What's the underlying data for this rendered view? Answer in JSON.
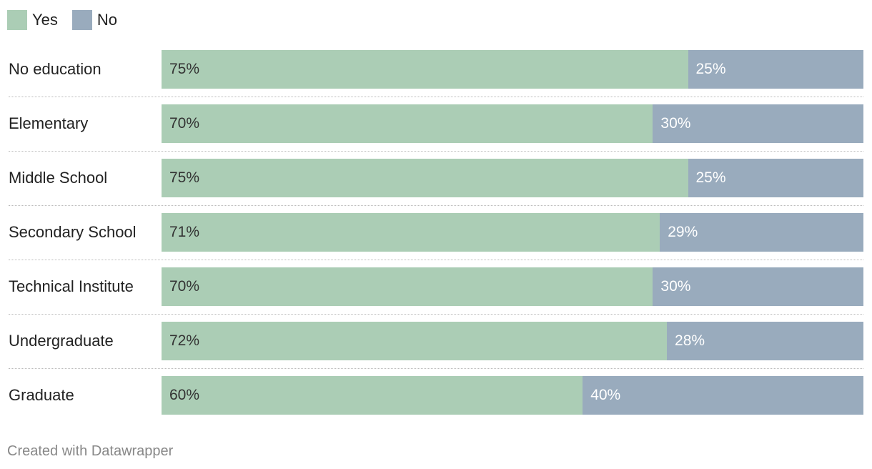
{
  "legend": {
    "items": [
      {
        "label": "Yes",
        "color": "#abcdb5"
      },
      {
        "label": "No",
        "color": "#99abbd"
      }
    ]
  },
  "colors": {
    "yes": "#abcdb5",
    "no": "#99abbd",
    "yes_text": "#333333",
    "no_text": "#ffffff"
  },
  "chart_data": {
    "type": "bar",
    "orientation": "horizontal",
    "stacked": true,
    "percent": true,
    "categories": [
      "No education",
      "Elementary",
      "Middle School",
      "Secondary School",
      "Technical Institute",
      "Undergraduate",
      "Graduate"
    ],
    "series": [
      {
        "name": "Yes",
        "values": [
          75,
          70,
          75,
          71,
          70,
          72,
          60
        ]
      },
      {
        "name": "No",
        "values": [
          25,
          30,
          25,
          29,
          30,
          28,
          40
        ]
      }
    ],
    "legend_position": "top-left"
  },
  "footer": {
    "credit": "Created with Datawrapper"
  }
}
